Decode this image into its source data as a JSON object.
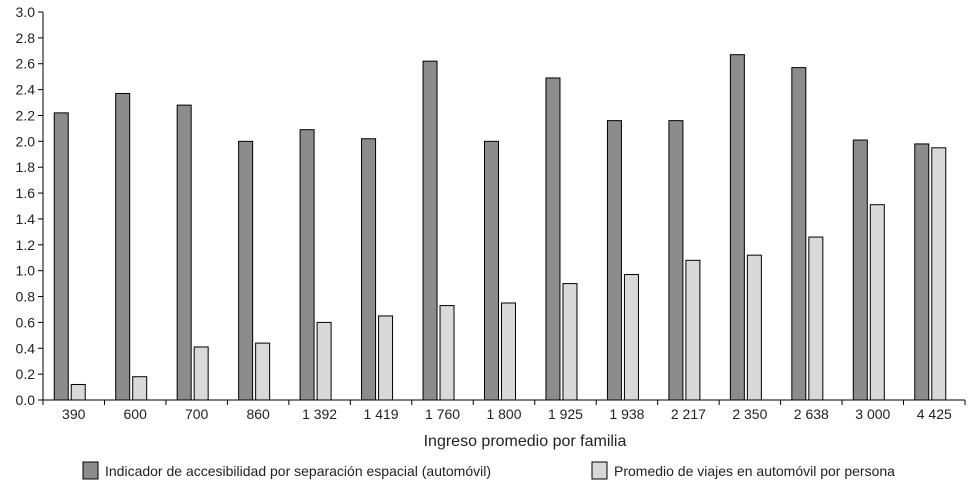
{
  "chart_data": {
    "type": "bar",
    "title": "",
    "xlabel": "Ingreso promedio por familia",
    "ylabel": "",
    "ylim": [
      0,
      3.0
    ],
    "yticks": [
      "0.0",
      "0.2",
      "0.4",
      "0.6",
      "0.8",
      "1.0",
      "1.2",
      "1.4",
      "1.6",
      "1.8",
      "2.0",
      "2.2",
      "2.4",
      "2.6",
      "2.8",
      "3.0"
    ],
    "categories": [
      "390",
      "600",
      "700",
      "860",
      "1 392",
      "1 419",
      "1 760",
      "1 800",
      "1 925",
      "1 938",
      "2 217",
      "2 350",
      "2 638",
      "3 000",
      "4 425"
    ],
    "series": [
      {
        "name": "Indicador de accesibilidad por separación espacial (automóvil)",
        "color": "#8c8c8c",
        "values": [
          2.22,
          2.37,
          2.28,
          2.0,
          2.09,
          2.02,
          2.62,
          2.0,
          2.49,
          2.16,
          2.16,
          2.67,
          2.57,
          2.01,
          1.98
        ]
      },
      {
        "name": "Promedio de viajes en automóvil por persona",
        "color": "#d9d9d9",
        "values": [
          0.12,
          0.18,
          0.41,
          0.44,
          0.6,
          0.65,
          0.73,
          0.75,
          0.9,
          0.97,
          1.08,
          1.12,
          1.26,
          1.51,
          1.95
        ]
      }
    ],
    "legend_position": "bottom",
    "grid": false
  }
}
